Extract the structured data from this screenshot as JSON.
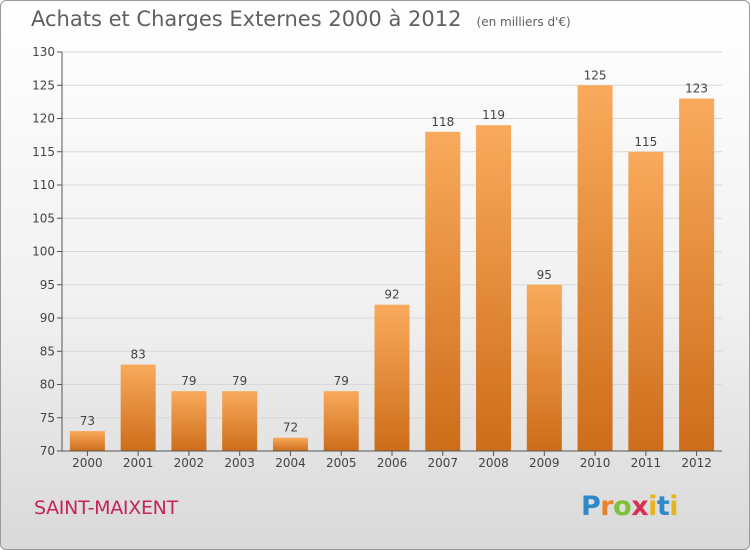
{
  "chart_data": {
    "type": "bar",
    "title": "Achats et Charges Externes 2000 à 2012",
    "subtitle": "(en milliers d'€)",
    "categories": [
      "2000",
      "2001",
      "2002",
      "2003",
      "2004",
      "2005",
      "2006",
      "2007",
      "2008",
      "2009",
      "2010",
      "2011",
      "2012"
    ],
    "values": [
      73,
      83,
      79,
      79,
      72,
      79,
      92,
      118,
      119,
      95,
      125,
      115,
      123
    ],
    "ylim": [
      70,
      130
    ],
    "yticks": [
      70,
      75,
      80,
      85,
      90,
      95,
      100,
      105,
      110,
      115,
      120,
      125,
      130
    ],
    "grid": true,
    "colors": {
      "bar_light": "#f9aa5c",
      "bar_dark": "#cd6d1a",
      "grid": "#d8d8d8",
      "axis": "#555555",
      "text": "#444444"
    }
  },
  "footer": {
    "commune": "SAINT-MAIXENT",
    "logo": "Proxiti"
  }
}
